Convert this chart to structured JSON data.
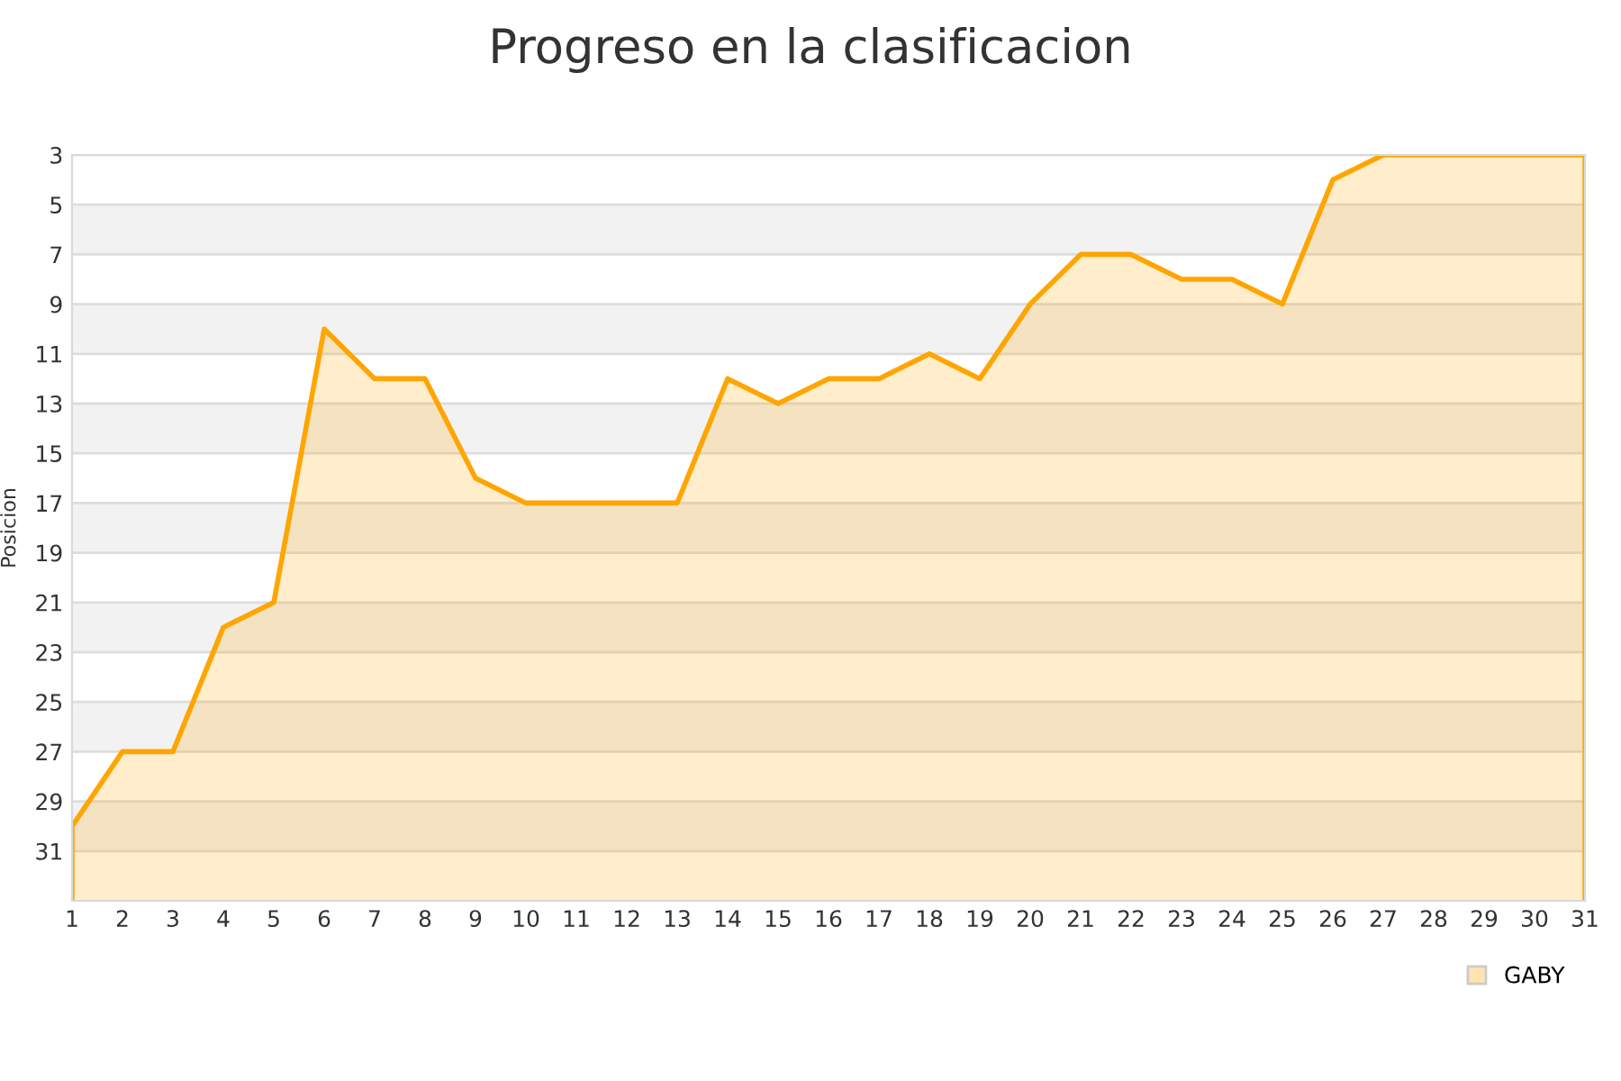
{
  "chart_data": {
    "type": "area",
    "title": "Progreso en la clasificacion",
    "ylabel": "Posicion",
    "x": [
      1,
      2,
      3,
      4,
      5,
      6,
      7,
      8,
      9,
      10,
      11,
      12,
      13,
      14,
      15,
      16,
      17,
      18,
      19,
      20,
      21,
      22,
      23,
      24,
      25,
      26,
      27,
      28,
      29,
      30,
      31
    ],
    "series": [
      {
        "name": "GABY",
        "color": "#ffa500",
        "values": [
          30,
          27,
          27,
          22,
          21,
          10,
          12,
          12,
          16,
          17,
          17,
          17,
          17,
          12,
          13,
          12,
          12,
          11,
          12,
          9,
          7,
          7,
          8,
          8,
          9,
          4,
          3,
          3,
          3,
          3,
          3
        ]
      }
    ],
    "xlim": [
      1,
      31
    ],
    "xticks": [
      1,
      2,
      3,
      4,
      5,
      6,
      7,
      8,
      9,
      10,
      11,
      12,
      13,
      14,
      15,
      16,
      17,
      18,
      19,
      20,
      21,
      22,
      23,
      24,
      25,
      26,
      27,
      28,
      29,
      30,
      31
    ],
    "ylim": [
      33,
      3
    ],
    "yticks": [
      3,
      5,
      7,
      9,
      11,
      13,
      15,
      17,
      19,
      21,
      23,
      25,
      27,
      29,
      31
    ],
    "bands": [
      {
        "axis": "y",
        "from": 5,
        "to": 7,
        "color": "#f2f2f2"
      },
      {
        "axis": "y",
        "from": 9,
        "to": 11,
        "color": "#f2f2f2"
      },
      {
        "axis": "y",
        "from": 13,
        "to": 15,
        "color": "#f2f2f2"
      },
      {
        "axis": "y",
        "from": 17,
        "to": 19,
        "color": "#f2f2f2"
      },
      {
        "axis": "y",
        "from": 21,
        "to": 23,
        "color": "#f2f2f2"
      },
      {
        "axis": "y",
        "from": 25,
        "to": 27,
        "color": "#f2f2f2"
      },
      {
        "axis": "y",
        "from": 29,
        "to": 31,
        "color": "#f2f2f2"
      }
    ],
    "grid": "y",
    "legend": "bottom right",
    "marker": "none",
    "line_style": "solid"
  }
}
